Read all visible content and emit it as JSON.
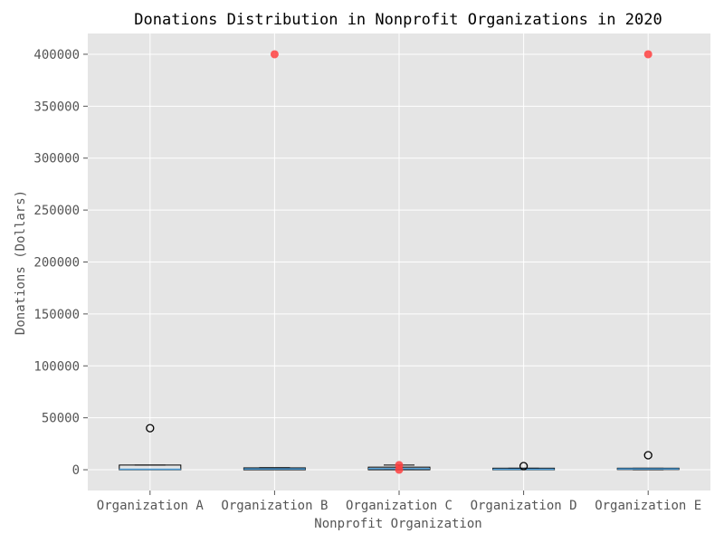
{
  "chart_data": {
    "type": "box",
    "title": "Donations Distribution in Nonprofit Organizations in 2020",
    "xlabel": "Nonprofit Organization",
    "ylabel": "Donations (Dollars)",
    "ylim": [
      -20000,
      420000
    ],
    "yticks": [
      0,
      50000,
      100000,
      150000,
      200000,
      250000,
      300000,
      350000,
      400000
    ],
    "grid": true,
    "categories": [
      "Organization A",
      "Organization B",
      "Organization C",
      "Organization D",
      "Organization E"
    ],
    "boxes": [
      {
        "name": "Organization A",
        "whislo": 0,
        "q1": 0,
        "med": 500,
        "q3": 4500,
        "whishi": 4500,
        "fliers": [
          40000
        ]
      },
      {
        "name": "Organization B",
        "whislo": 0,
        "q1": 0,
        "med": 800,
        "q3": 1800,
        "whishi": 2000,
        "fliers": []
      },
      {
        "name": "Organization C",
        "whislo": 0,
        "q1": 0,
        "med": 1000,
        "q3": 2500,
        "whishi": 4500,
        "fliers": []
      },
      {
        "name": "Organization D",
        "whislo": 0,
        "q1": 0,
        "med": 500,
        "q3": 1500,
        "whishi": 1500,
        "fliers": [
          3500
        ]
      },
      {
        "name": "Organization E",
        "whislo": 0,
        "q1": 200,
        "med": 800,
        "q3": 1500,
        "whishi": 1500,
        "fliers": [
          14000
        ]
      }
    ],
    "highlighted_points": [
      {
        "category": "Organization B",
        "value": 400000
      },
      {
        "category": "Organization C",
        "value": 4500
      },
      {
        "category": "Organization C",
        "value": 0
      },
      {
        "category": "Organization E",
        "value": 400000
      }
    ],
    "colors": {
      "plot_background": "#e5e5e5",
      "grid": "#ffffff",
      "box_edge": "#000000",
      "median": "#4c9ed9",
      "highlight": "#ff4040"
    }
  }
}
